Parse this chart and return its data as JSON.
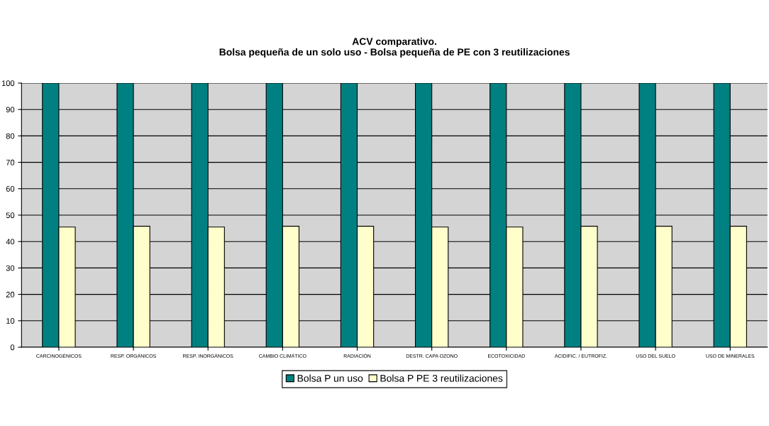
{
  "chart_data": {
    "type": "bar",
    "title": "ACV comparativo.\nBolsa pequeña de un solo uso - Bolsa pequeña de PE con 3 reutilizaciones",
    "categories": [
      "CARCINOGÉNICOS",
      "RESP. ORGÁNICOS",
      "RESP. INORGÁNICOS",
      "CAMBIO CLIMÁTICO",
      "RADIACIÓN",
      "DESTR. CAPA OZONO",
      "ECOTOXICIDAD",
      "ACIDIFIC. / EUTROFIZ.",
      "USO DEL SUELO",
      "USO DE MINERALES"
    ],
    "series": [
      {
        "name": "Bolsa P un uso",
        "color": "#008080",
        "values": [
          100,
          100,
          100,
          100,
          100,
          100,
          100,
          100,
          100,
          100
        ]
      },
      {
        "name": "Bolsa P PE 3 reutilizaciones",
        "color": "#ffffcc",
        "values": [
          45.5,
          45.8,
          45.5,
          45.8,
          45.8,
          45.5,
          45.5,
          45.8,
          45.8,
          45.8
        ]
      }
    ],
    "ylim": [
      0,
      100
    ],
    "yticks": [
      0,
      10,
      20,
      30,
      40,
      50,
      60,
      70,
      80,
      90,
      100
    ],
    "grid": "y",
    "legend": "bottom"
  }
}
